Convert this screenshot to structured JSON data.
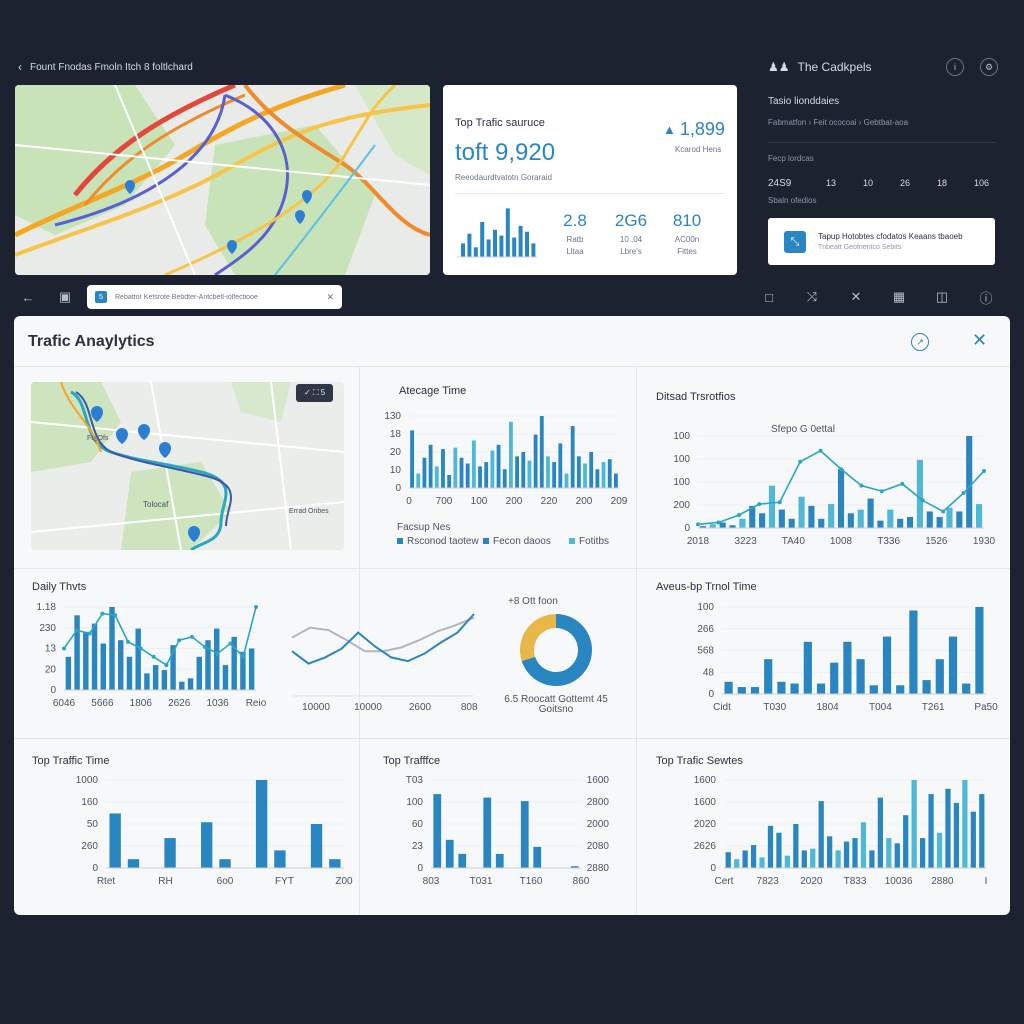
{
  "top": {
    "breadcrumb": "Fount Fnodas Fmoln Itch 8 foltlchard",
    "stats_card": {
      "title": "Top Trafic sauruce",
      "big_value": "toft 9,920",
      "right_value": "1,899",
      "right_label": "Kcarod Hens",
      "subtitle": "Reeodaurdtvatotn Goraraid",
      "metrics": [
        {
          "value": "2.8",
          "line1": "Ratb",
          "line2": "Lltaa"
        },
        {
          "value": "2G6",
          "line1": "10 ,04",
          "line2": "Lbre's"
        },
        {
          "value": "810",
          "line1": "AC00n",
          "line2": "Fittes"
        }
      ],
      "mini_bars": [
        14,
        24,
        10,
        36,
        18,
        28,
        22,
        50,
        20,
        32,
        26,
        14
      ]
    },
    "side": {
      "title": "The Cadkpels",
      "section": "Tasio lionddaies",
      "sub": "Fabmatfon  › Feit ococoai  › Gebtbat-aoa",
      "label": "Fecp lordcas",
      "stats": [
        "24S9",
        "13",
        "10",
        "26",
        "18",
        "106"
      ],
      "stats_sub": "Sbaln ofedios",
      "notice_line1": "Tapup Hotobtes cfodatos Keaans tbaoeb",
      "notice_line2": "Tnbeatt Geofnentco Sebits"
    },
    "search_placeholder": "Rebattor Ketsrote Bebdter-Antcbetl-iolfectiooe"
  },
  "panel": {
    "title": "Trafic Anaylytics",
    "map_badge": "✓  ⛶  5",
    "map_labels": [
      "Tolocaf",
      "Errad Onbes",
      "Ft¿Ofs"
    ]
  },
  "charts": [
    {
      "id": "avg-time",
      "title": "Atecage Time",
      "type": "bar",
      "ylabels": [
        "130",
        "18",
        "20",
        "10",
        "0"
      ],
      "xlabels": [
        "0",
        "700",
        "100",
        "200",
        "220",
        "200",
        "209"
      ],
      "values": [
        80,
        20,
        42,
        60,
        30,
        54,
        18,
        56,
        42,
        34,
        66,
        30,
        36,
        52,
        60,
        26,
        92,
        44,
        50,
        38,
        74,
        100,
        44,
        36,
        62,
        20,
        86,
        44,
        34,
        50,
        26,
        36,
        40,
        20
      ],
      "legend": [
        "Rsconod taotew",
        "Fecon daoos",
        "Fotitbs"
      ],
      "legend_title": "Facsup Nes"
    },
    {
      "id": "distribution",
      "title": "Ditsad Trsrotfios",
      "type": "bar+line",
      "ylabels": [
        "100",
        "100",
        "100",
        "200",
        "0"
      ],
      "xlabels": [
        "2018",
        "3223",
        "TA40",
        "1008",
        "T336",
        "1526",
        "1930"
      ],
      "values": [
        2,
        4,
        6,
        3,
        10,
        24,
        16,
        46,
        20,
        10,
        34,
        24,
        10,
        26,
        64,
        16,
        20,
        32,
        8,
        20,
        10,
        12,
        74,
        18,
        12,
        22,
        18,
        100,
        26
      ],
      "line": [
        4,
        6,
        14,
        26,
        28,
        72,
        84,
        64,
        46,
        40,
        48,
        30,
        18,
        38,
        62
      ],
      "annotation": "Sfepo G 0ettal"
    },
    {
      "id": "daily",
      "title": "Daily Thvts",
      "type": "bar+line",
      "ylabels": [
        "1.18",
        "230",
        "13",
        "20",
        "0"
      ],
      "xlabels": [
        "6046",
        "5666",
        "1806",
        "2626",
        "1036",
        "Reio"
      ],
      "values": [
        40,
        90,
        70,
        80,
        56,
        100,
        60,
        40,
        74,
        20,
        30,
        24,
        54,
        10,
        14,
        40,
        60,
        74,
        30,
        64,
        46,
        50
      ],
      "line": [
        50,
        72,
        68,
        92,
        90,
        58,
        50,
        40,
        30,
        60,
        64,
        52,
        44,
        56,
        40,
        100
      ]
    },
    {
      "id": "lines",
      "title": "",
      "type": "line",
      "xlabels": [
        "10000",
        "10000",
        "2600",
        "8085"
      ],
      "series_a": [
        40,
        20,
        30,
        44,
        70,
        48,
        30,
        24,
        36,
        54,
        70,
        100
      ],
      "series_b": [
        62,
        78,
        74,
        58,
        40,
        40,
        46,
        58,
        72,
        82,
        94
      ]
    },
    {
      "id": "donut",
      "title": "+8 Ott foon",
      "type": "pie",
      "values": [
        70,
        30
      ],
      "label1": "6.5 Roocatt Gottemt 45",
      "label2": "Goitsno"
    },
    {
      "id": "avg-total",
      "title": "Aveus-bp Trnol Time",
      "type": "bar",
      "ylabels": [
        "100",
        "266",
        "568",
        "48",
        "0"
      ],
      "xlabels": [
        "Cidt",
        "T030",
        "1804",
        "T004",
        "T261",
        "Pa50"
      ],
      "values": [
        14,
        8,
        8,
        40,
        14,
        12,
        60,
        12,
        36,
        60,
        40,
        10,
        66,
        10,
        96,
        16,
        40,
        66,
        12,
        100
      ]
    },
    {
      "id": "top-time",
      "title": "Top Traffic Time",
      "type": "bar",
      "ylabels": [
        "1000",
        "160",
        "50",
        "260",
        "0"
      ],
      "xlabels": [
        "Rtet",
        "RH",
        "6o0",
        "FYT",
        "Z00"
      ],
      "values": [
        62,
        10,
        0,
        34,
        0,
        52,
        10,
        0,
        100,
        20,
        0,
        50,
        10
      ]
    },
    {
      "id": "top-traffic",
      "title": "Top Trafffce",
      "type": "bar",
      "ylabels": [
        "T03",
        "100",
        "60",
        "23",
        "0"
      ],
      "ylabels_right": [
        "1600",
        "2800",
        "2000",
        "2080",
        "2880"
      ],
      "xlabels": [
        "803",
        "T031",
        "T160",
        "860"
      ],
      "values": [
        84,
        32,
        16,
        0,
        80,
        16,
        0,
        76,
        24,
        0,
        0,
        2
      ]
    },
    {
      "id": "top-sources",
      "title": "Top Trafic Sewtes",
      "type": "bar",
      "ylabels": [
        "1600",
        "1600",
        "2020",
        "2626",
        "0"
      ],
      "xlabels": [
        "Cert",
        "7823",
        "2020",
        "T833",
        "10036",
        "2880",
        "I"
      ],
      "values": [
        18,
        10,
        20,
        26,
        12,
        48,
        40,
        14,
        50,
        20,
        22,
        76,
        36,
        20,
        30,
        34,
        52,
        20,
        80,
        34,
        28,
        60,
        100,
        34,
        84,
        40,
        90,
        74,
        100,
        64,
        84
      ]
    }
  ],
  "colors": {
    "bar": "#2a86c0",
    "bar_light": "#4eb8d6",
    "line": "#2aa7c2",
    "line_gray": "#b0b7c2",
    "donut_blue": "#2a86c0",
    "donut_amber": "#e8b74a",
    "bg": "#1c2230"
  },
  "toolbar_icons": [
    "back-arrow-icon",
    "sidebar-icon",
    "square-icon",
    "shuffle-icon",
    "close-icon",
    "grid-icon",
    "panel-icon",
    "info-icon"
  ]
}
